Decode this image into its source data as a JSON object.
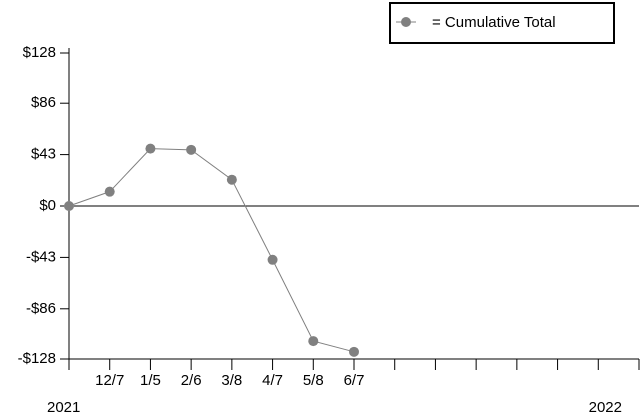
{
  "chart_data": {
    "type": "line",
    "categories": [
      null,
      "12/7",
      "1/5",
      "2/6",
      "3/8",
      "4/7",
      "5/8",
      "6/7",
      null,
      null,
      null,
      null,
      null,
      null,
      null
    ],
    "series": [
      {
        "name": "= Cumulative Total",
        "color": "#808080",
        "values": [
          0,
          12,
          48,
          47,
          22,
          -45,
          -113,
          -122,
          null,
          null,
          null,
          null,
          null,
          null,
          null
        ]
      }
    ],
    "ylim": [
      -128,
      128
    ],
    "yticks": [
      {
        "value": 128,
        "label": "$128"
      },
      {
        "value": 86,
        "label": "$86"
      },
      {
        "value": 43,
        "label": "$43"
      },
      {
        "value": 0,
        "label": "$0"
      },
      {
        "value": -43,
        "label": "-$43"
      },
      {
        "value": -86,
        "label": "-$86"
      },
      {
        "value": -128,
        "label": "-$128"
      }
    ],
    "zero_line": true,
    "legend": "top-right",
    "period_labels": [
      "2021",
      "2022"
    ]
  }
}
